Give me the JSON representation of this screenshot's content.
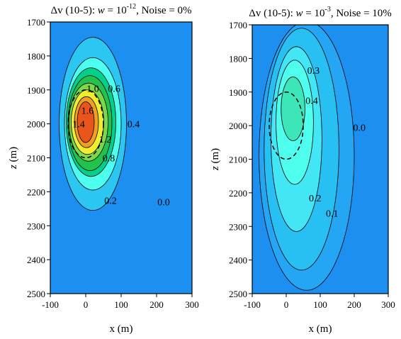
{
  "chart_data": [
    {
      "type": "contour",
      "title": {
        "delta": "Δv (10-5): ",
        "var": "w",
        "eq": " = 10",
        "exp": "-12",
        "rest": ", Noise = 0%"
      },
      "xlabel": "x (m)",
      "ylabel_var": "z",
      "ylabel_unit": " (m)",
      "xlim": [
        -100,
        300
      ],
      "ylim": [
        1700,
        2500
      ],
      "y_reversed": true,
      "xticks": [
        "-100",
        "0",
        "100",
        "200",
        "300"
      ],
      "yticks": [
        "1700",
        "1800",
        "1900",
        "2000",
        "2100",
        "2200",
        "2300",
        "2400",
        "2500"
      ],
      "background_color": "#1D8FF0",
      "levels": [
        {
          "level": 0.2,
          "color": "#2BC6F2",
          "center": [
            20,
            2000
          ],
          "rx": 95,
          "ry": 255
        },
        {
          "level": 0.4,
          "color": "#4DFFEF",
          "center": [
            20,
            2000
          ],
          "rx": 80,
          "ry": 195
        },
        {
          "level": 0.6,
          "color": "#00D18A",
          "center": [
            15,
            1995
          ],
          "rx": 70,
          "ry": 160
        },
        {
          "level": 0.8,
          "color": "#22C24E",
          "center": [
            12,
            1998
          ],
          "rx": 62,
          "ry": 140
        },
        {
          "level": 1.0,
          "color": "#7BD84B",
          "center": [
            8,
            1995
          ],
          "rx": 55,
          "ry": 115
        },
        {
          "level": 1.2,
          "color": "#F1EC2E",
          "center": [
            5,
            1995
          ],
          "rx": 46,
          "ry": 95
        },
        {
          "level": 1.4,
          "color": "#F0A020",
          "center": [
            2,
            1995
          ],
          "rx": 34,
          "ry": 75
        },
        {
          "level": 1.6,
          "color": "#E8561C",
          "center": [
            0,
            1995
          ],
          "rx": 24,
          "ry": 60
        }
      ],
      "labels": [
        {
          "text": "1.6",
          "x": 5,
          "y": 1960
        },
        {
          "text": "1.4",
          "x": -20,
          "y": 2000
        },
        {
          "text": "1.0",
          "x": 20,
          "y": 1895
        },
        {
          "text": "0.6",
          "x": 80,
          "y": 1895
        },
        {
          "text": "1.2",
          "x": 55,
          "y": 2045
        },
        {
          "text": "0.4",
          "x": 135,
          "y": 2000
        },
        {
          "text": "0.8",
          "x": 65,
          "y": 2100
        },
        {
          "text": "0.2",
          "x": 70,
          "y": 2225
        },
        {
          "text": "0.0",
          "x": 220,
          "y": 2230
        }
      ],
      "dashed_ellipse": {
        "center": [
          0,
          2000
        ],
        "rx": 50,
        "ry": 100
      }
    },
    {
      "type": "contour",
      "title": {
        "delta": "Δv (10-5): ",
        "var": "w",
        "eq": " = 10",
        "exp": "-3",
        "rest": ", Noise = 10%"
      },
      "xlabel": "x (m)",
      "ylabel_var": "z",
      "ylabel_unit": " (m)",
      "xlim": [
        -100,
        300
      ],
      "ylim": [
        1700,
        2500
      ],
      "y_reversed": true,
      "xticks": [
        "-100",
        "0",
        "100",
        "200",
        "300"
      ],
      "yticks": [
        "1700",
        "1800",
        "1900",
        "2000",
        "2100",
        "2200",
        "2300",
        "2400",
        "2500"
      ],
      "background_color": "#1D8FF0",
      "levels": [
        {
          "level": 0.0,
          "color": "#24A6F5",
          "center": [
            60,
            2090
          ],
          "rx": 140,
          "ry": 400
        },
        {
          "level": 0.1,
          "color": "#28C0F3",
          "center": [
            45,
            2070
          ],
          "rx": 110,
          "ry": 360
        },
        {
          "level": 0.2,
          "color": "#42E6F4",
          "center": [
            30,
            2040
          ],
          "rx": 75,
          "ry": 275
        },
        {
          "level": 0.3,
          "color": "#4DFFEC",
          "center": [
            25,
            1990
          ],
          "rx": 55,
          "ry": 185
        },
        {
          "level": 0.4,
          "color": "#3DE6B8",
          "center": [
            20,
            1950
          ],
          "rx": 35,
          "ry": 95
        }
      ],
      "labels": [
        {
          "text": "0.3",
          "x": 80,
          "y": 1835
        },
        {
          "text": "0.4",
          "x": 75,
          "y": 1925
        },
        {
          "text": "0.0",
          "x": 215,
          "y": 2005
        },
        {
          "text": "0.2",
          "x": 85,
          "y": 2215
        },
        {
          "text": "0.1",
          "x": 135,
          "y": 2260
        }
      ],
      "dashed_ellipse": {
        "center": [
          0,
          2000
        ],
        "rx": 50,
        "ry": 100
      }
    }
  ]
}
